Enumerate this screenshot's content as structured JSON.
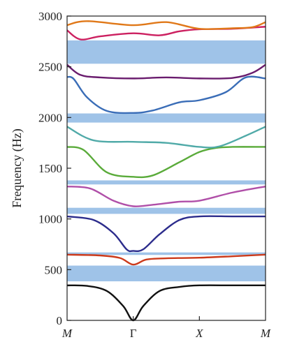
{
  "chart_data": {
    "type": "line",
    "title": "",
    "xlabel": "",
    "ylabel": "Frequency (Hz)",
    "ylim": [
      0,
      3000
    ],
    "x_range": [
      0,
      3
    ],
    "grid": false,
    "legend": "none",
    "x_ticks": [
      {
        "x": 0,
        "label": "M"
      },
      {
        "x": 1,
        "label": "Γ"
      },
      {
        "x": 2,
        "label": "X"
      },
      {
        "x": 3,
        "label": "M"
      }
    ],
    "y_ticks": [
      0,
      500,
      1000,
      1500,
      2000,
      2500,
      3000
    ],
    "band_gaps": [
      {
        "from": 385,
        "to": 540
      },
      {
        "from": 645,
        "to": 670
      },
      {
        "from": 1050,
        "to": 1110
      },
      {
        "from": 1340,
        "to": 1380
      },
      {
        "from": 1950,
        "to": 2040
      },
      {
        "from": 2530,
        "to": 2760
      }
    ],
    "band_gap_color": "#9fc3e8",
    "series": [
      {
        "color": "#111111",
        "points": [
          [
            0,
            345
          ],
          [
            0.3,
            340
          ],
          [
            0.6,
            290
          ],
          [
            0.85,
            140
          ],
          [
            1,
            0
          ],
          [
            1.15,
            140
          ],
          [
            1.4,
            290
          ],
          [
            1.7,
            330
          ],
          [
            2,
            345
          ],
          [
            2.5,
            345
          ],
          [
            3,
            345
          ]
        ]
      },
      {
        "color": "#cc3a1b",
        "points": [
          [
            0,
            648
          ],
          [
            0.5,
            640
          ],
          [
            0.8,
            615
          ],
          [
            1,
            550
          ],
          [
            1.2,
            600
          ],
          [
            1.5,
            612
          ],
          [
            2,
            618
          ],
          [
            2.5,
            632
          ],
          [
            3,
            648
          ]
        ]
      },
      {
        "color": "#2c2c8c",
        "points": [
          [
            0,
            1025
          ],
          [
            0.4,
            990
          ],
          [
            0.7,
            860
          ],
          [
            0.9,
            700
          ],
          [
            1,
            685
          ],
          [
            1.15,
            700
          ],
          [
            1.4,
            850
          ],
          [
            1.7,
            990
          ],
          [
            2,
            1025
          ],
          [
            2.5,
            1025
          ],
          [
            3,
            1025
          ]
        ]
      },
      {
        "color": "#b04fa8",
        "points": [
          [
            0,
            1320
          ],
          [
            0.35,
            1300
          ],
          [
            0.7,
            1180
          ],
          [
            1,
            1125
          ],
          [
            1.3,
            1140
          ],
          [
            1.7,
            1170
          ],
          [
            2,
            1180
          ],
          [
            2.5,
            1260
          ],
          [
            3,
            1320
          ]
        ]
      },
      {
        "color": "#5aab3a",
        "points": [
          [
            0,
            1710
          ],
          [
            0.25,
            1680
          ],
          [
            0.6,
            1460
          ],
          [
            1,
            1415
          ],
          [
            1.3,
            1430
          ],
          [
            1.7,
            1560
          ],
          [
            2,
            1660
          ],
          [
            2.25,
            1700
          ],
          [
            2.5,
            1710
          ],
          [
            3,
            1710
          ]
        ]
      },
      {
        "color": "#50aaa8",
        "points": [
          [
            0,
            1910
          ],
          [
            0.4,
            1775
          ],
          [
            1,
            1760
          ],
          [
            1.5,
            1750
          ],
          [
            2,
            1710
          ],
          [
            2.3,
            1715
          ],
          [
            2.7,
            1820
          ],
          [
            3,
            1910
          ]
        ]
      },
      {
        "color": "#3a6db7",
        "points": [
          [
            0,
            2400
          ],
          [
            0.1,
            2380
          ],
          [
            0.3,
            2200
          ],
          [
            0.6,
            2065
          ],
          [
            1,
            2045
          ],
          [
            1.3,
            2070
          ],
          [
            1.7,
            2150
          ],
          [
            2,
            2170
          ],
          [
            2.4,
            2250
          ],
          [
            2.7,
            2395
          ],
          [
            3,
            2385
          ]
        ]
      },
      {
        "color": "#6a1c6e",
        "points": [
          [
            0,
            2520
          ],
          [
            0.2,
            2420
          ],
          [
            0.5,
            2395
          ],
          [
            1,
            2385
          ],
          [
            1.5,
            2395
          ],
          [
            2,
            2385
          ],
          [
            2.5,
            2390
          ],
          [
            2.8,
            2440
          ],
          [
            3,
            2520
          ]
        ]
      },
      {
        "color": "#cc2060",
        "points": [
          [
            0,
            2860
          ],
          [
            0.2,
            2770
          ],
          [
            0.5,
            2800
          ],
          [
            1,
            2830
          ],
          [
            1.4,
            2810
          ],
          [
            1.7,
            2850
          ],
          [
            2,
            2870
          ],
          [
            2.5,
            2875
          ],
          [
            3,
            2895
          ]
        ]
      },
      {
        "color": "#e07818",
        "points": [
          [
            0,
            2910
          ],
          [
            0.3,
            2950
          ],
          [
            1,
            2910
          ],
          [
            1.5,
            2940
          ],
          [
            2,
            2875
          ],
          [
            2.5,
            2880
          ],
          [
            2.8,
            2890
          ],
          [
            3,
            2940
          ]
        ]
      }
    ]
  }
}
